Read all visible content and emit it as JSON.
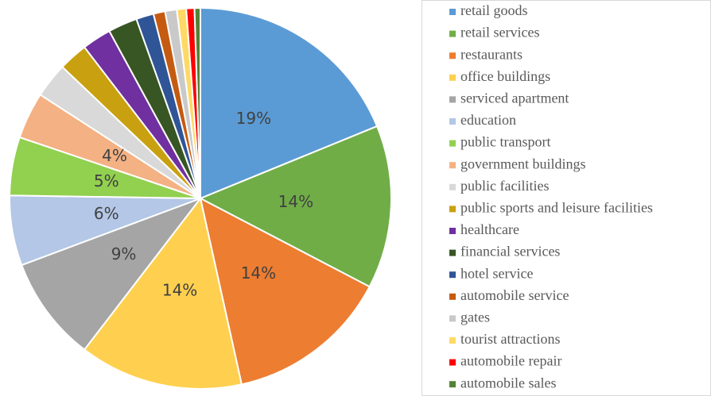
{
  "chart_data": {
    "type": "pie",
    "categories": [
      "retail goods",
      "retail services",
      "restaurants",
      "office buildings",
      "serviced apartment",
      "education",
      "public transport",
      "government buildings",
      "public facilities",
      "public sports and leisure facilities",
      "healthcare",
      "financial services",
      "hotel service",
      "automobile service",
      "gates",
      "tourist attractions",
      "automobile repair",
      "automobile sales"
    ],
    "values": [
      19,
      14,
      14,
      14,
      9,
      6,
      5,
      4,
      3,
      2.5,
      2.5,
      2.5,
      1.5,
      1,
      1,
      0.8,
      0.7,
      0.5
    ],
    "value_labels": [
      "19%",
      "14%",
      "14%",
      "14%",
      "9%",
      "6%",
      "5%",
      "4%",
      null,
      null,
      null,
      null,
      null,
      null,
      null,
      null,
      null,
      null
    ],
    "colors": [
      "#5b9bd5",
      "#70ad47",
      "#ed7d31",
      "#ffd04f",
      "#a5a5a5",
      "#b4c7e7",
      "#92d050",
      "#f4b183",
      "#d9d9d9",
      "#c9a00f",
      "#7030a0",
      "#375623",
      "#2f5597",
      "#c55a11",
      "#c9c9c9",
      "#ffd966",
      "#ff0000",
      "#548235"
    ],
    "legend": "right"
  }
}
